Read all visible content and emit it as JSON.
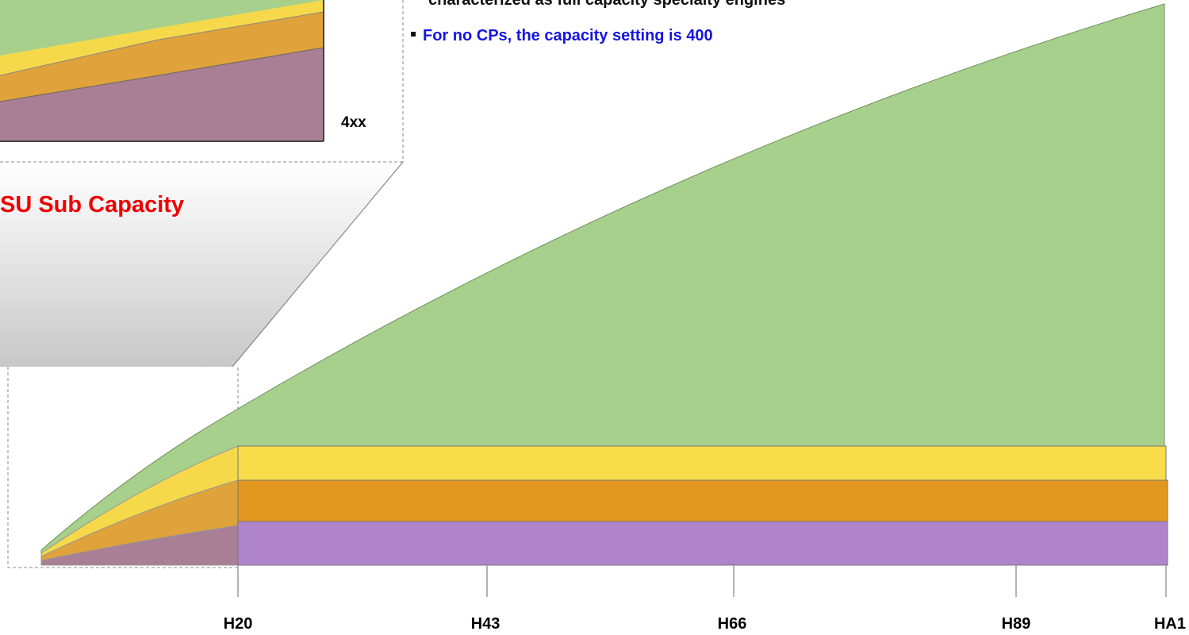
{
  "notes": [
    "characterized as full capacity specialty engines",
    "For no CPs, the capacity setting is 400"
  ],
  "inset_label": "4xx",
  "inset_title": "SU Sub Capacity",
  "axis_labels": [
    "H20",
    "H43",
    "H66",
    "H89",
    "HA1"
  ]
}
